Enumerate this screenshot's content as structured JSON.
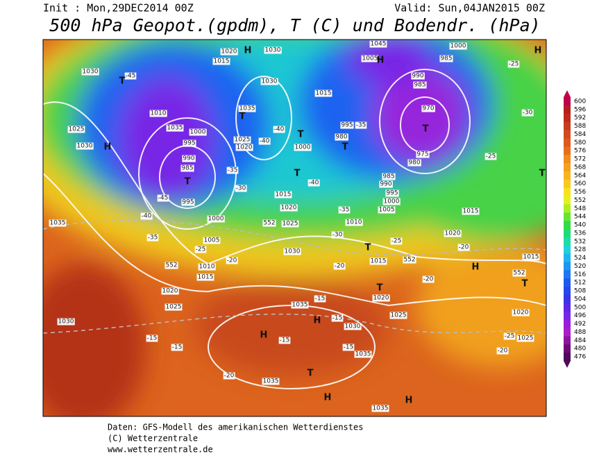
{
  "header": {
    "init": "Init : Mon,29DEC2014 00Z",
    "valid": "Valid: Sun,04JAN2015 00Z",
    "title": "500 hPa Geopot.(gpdm), T (C) und Bodendr. (hPa)"
  },
  "colorbar": {
    "levels": [
      600,
      596,
      592,
      588,
      584,
      580,
      576,
      572,
      568,
      564,
      560,
      556,
      552,
      548,
      544,
      540,
      536,
      532,
      528,
      524,
      520,
      516,
      512,
      508,
      504,
      500,
      496,
      492,
      488,
      484,
      480,
      476
    ],
    "colors": [
      "#c0004a",
      "#b41e1e",
      "#c0281e",
      "#c83c1e",
      "#d24b1e",
      "#dc5a1e",
      "#e66e1e",
      "#f08c1e",
      "#f5a01e",
      "#f8b41e",
      "#fac81e",
      "#fae11e",
      "#e6f01e",
      "#aaf01e",
      "#64e632",
      "#32dc46",
      "#1edc78",
      "#1edcaa",
      "#1ed2dc",
      "#1eb4f0",
      "#1e96f0",
      "#1e78f0",
      "#1e5af0",
      "#2846f0",
      "#3c32e6",
      "#5a28e6",
      "#7828e6",
      "#961edc",
      "#aa1ec8",
      "#8c14a0",
      "#6e0a78",
      "#500a5a"
    ]
  },
  "map": {
    "labels": [
      "1030",
      "1020",
      "1030",
      "1045",
      "1000",
      "985",
      "1015",
      "1005",
      "H",
      "H",
      "H",
      "-45",
      "T",
      "1030",
      "1015",
      "990",
      "985",
      "970",
      "T",
      "975",
      "980",
      "1010",
      "1035",
      "T",
      "1025",
      "1035",
      "1000",
      "1030",
      "H",
      "995",
      "1025",
      "1020",
      "-40",
      "-40",
      "T",
      "995",
      "-35",
      "980",
      "T",
      "1000",
      "990",
      "985",
      "T",
      "-45",
      "995",
      "-35",
      "-30",
      "T",
      "-40",
      "985",
      "990",
      "995",
      "1000",
      "1005",
      "T",
      "-25",
      "-30",
      "-25",
      "1015",
      "1020",
      "1025",
      "552",
      "-40",
      "1000",
      "-35",
      "1005",
      "-25",
      "-35",
      "1010",
      "-30",
      "1035",
      "1015",
      "1020",
      "552",
      "1010",
      "1015",
      "-20",
      "1030",
      "T",
      "-20",
      "-25",
      "1015",
      "552",
      "H",
      "-20",
      "1015",
      "552",
      "T",
      "-20",
      "T",
      "1020",
      "1020",
      "1025",
      "1035",
      "-15",
      "H",
      "-15",
      "1030",
      "1025",
      "1020",
      "1025",
      "-25",
      "-20",
      "1030",
      "-15",
      "-15",
      "H",
      "-15",
      "-15",
      "1035",
      "T",
      "-20",
      "1035",
      "H",
      "H",
      "1035"
    ]
  },
  "footer": {
    "line1": "Daten: GFS-Modell des amerikanischen Wetterdienstes",
    "line2": "(C) Wetterzentrale",
    "line3": "www.wetterzentrale.de"
  }
}
